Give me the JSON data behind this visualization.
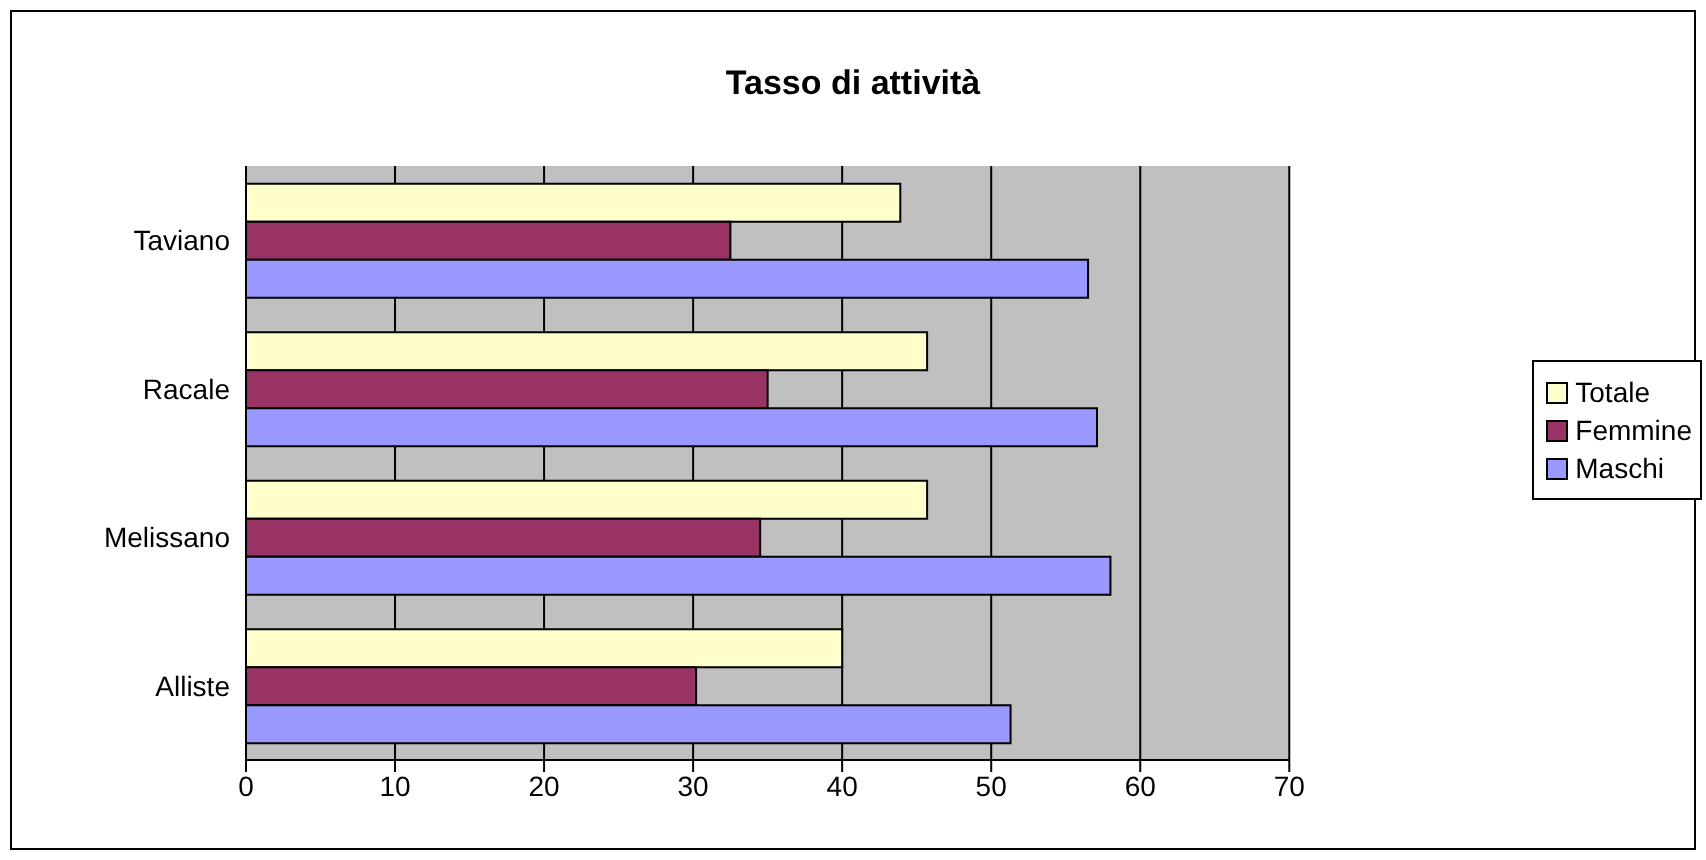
{
  "chart_data": {
    "type": "bar",
    "title": "Tasso di attività",
    "orientation": "horizontal",
    "categories": [
      "Taviano",
      "Racale",
      "Melissano",
      "Alliste"
    ],
    "series": [
      {
        "name": "Totale",
        "color": "#ffffcc",
        "values": [
          43.9,
          45.7,
          45.7,
          40.0
        ]
      },
      {
        "name": "Femmine",
        "color": "#993366",
        "values": [
          32.5,
          35.0,
          34.5,
          30.2
        ]
      },
      {
        "name": "Maschi",
        "color": "#9999ff",
        "values": [
          56.5,
          57.1,
          58.0,
          51.3
        ]
      }
    ],
    "xlim": [
      0,
      70
    ],
    "xticks": [
      0,
      10,
      20,
      30,
      40,
      50,
      60,
      70
    ],
    "grid": "x",
    "legend": "right"
  }
}
